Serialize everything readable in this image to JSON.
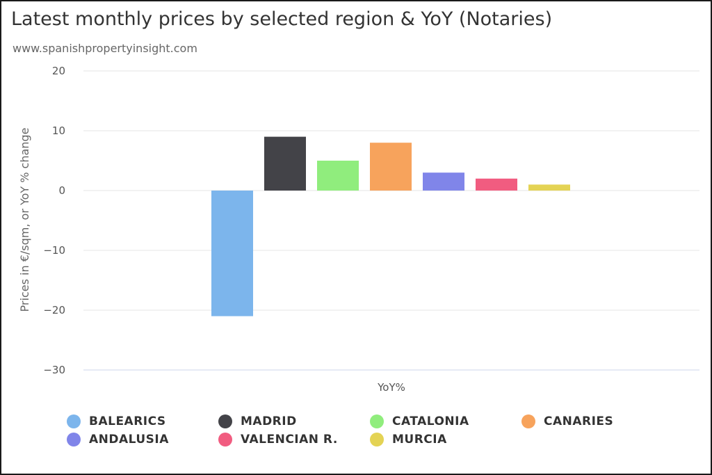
{
  "header": {
    "title": "Latest monthly prices by selected region & YoY (Notaries)",
    "subtitle": "www.spanishpropertyinsight.com"
  },
  "chart_data": {
    "type": "bar",
    "title": "Latest monthly prices by selected region & YoY (Notaries)",
    "subtitle": "www.spanishpropertyinsight.com",
    "xlabel": "YoY%",
    "ylabel": "Prices in €/sqm, or YoY % change",
    "ylim": [
      -30,
      20
    ],
    "yticks": [
      20,
      10,
      0,
      -10,
      -20,
      -30
    ],
    "ytick_labels": [
      "20",
      "10",
      "0",
      "−10",
      "−20",
      "−30"
    ],
    "grid": true,
    "legend_position": "bottom",
    "categories": [
      "YoY%"
    ],
    "series": [
      {
        "name": "BALEARICS",
        "values": [
          -21
        ],
        "color": "#7cb5ec"
      },
      {
        "name": "MADRID",
        "values": [
          9
        ],
        "color": "#434348"
      },
      {
        "name": "CATALONIA",
        "values": [
          5
        ],
        "color": "#90ed7d"
      },
      {
        "name": "CANARIES",
        "values": [
          8
        ],
        "color": "#f7a35c"
      },
      {
        "name": "ANDALUSIA",
        "values": [
          3
        ],
        "color": "#8085e9"
      },
      {
        "name": "VALENCIAN R.",
        "values": [
          2
        ],
        "color": "#f15c80"
      },
      {
        "name": "MURCIA",
        "values": [
          1
        ],
        "color": "#e4d354"
      }
    ]
  }
}
